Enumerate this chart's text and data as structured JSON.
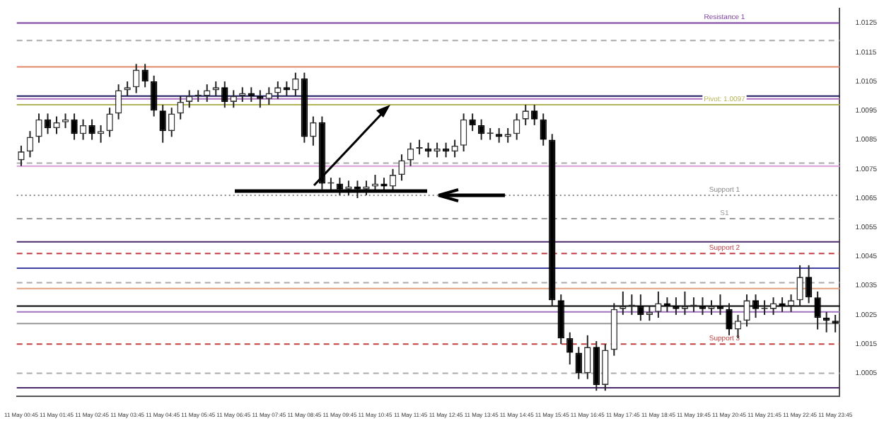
{
  "chart_data": {
    "type": "candlestick",
    "categories": [
      "11 May 00:45",
      null,
      null,
      null,
      "11 May 01:45",
      null,
      null,
      null,
      "11 May 02:45",
      null,
      null,
      null,
      "11 May 03:45",
      null,
      null,
      null,
      "11 May 04:45",
      null,
      null,
      null,
      "11 May 05:45",
      null,
      null,
      null,
      "11 May 06:45",
      null,
      null,
      null,
      "11 May 07:45",
      null,
      null,
      null,
      "11 May 08:45",
      null,
      null,
      null,
      "11 May 09:45",
      null,
      null,
      null,
      "11 May 10:45",
      null,
      null,
      null,
      "11 May 11:45",
      null,
      null,
      null,
      "11 May 12:45",
      null,
      null,
      null,
      "11 May 13:45",
      null,
      null,
      null,
      "11 May 14:45",
      null,
      null,
      null,
      "11 May 15:45",
      null,
      null,
      null,
      "11 May 16:45",
      null,
      null,
      null,
      "11 May 17:45",
      null,
      null,
      null,
      "11 May 18:45",
      null,
      null,
      null,
      "11 May 19:45",
      null,
      null,
      null,
      "11 May 20:45",
      null,
      null,
      null,
      "11 May 21:45",
      null,
      null,
      null,
      "11 May 22:45",
      null,
      null,
      null,
      "11 May 23:45"
    ],
    "ohlc": [
      [
        1.0078,
        1.0083,
        1.0076,
        1.0081
      ],
      [
        1.0081,
        1.0088,
        1.0079,
        1.0086
      ],
      [
        1.0086,
        1.0094,
        1.0084,
        1.0092
      ],
      [
        1.0092,
        1.0094,
        1.0087,
        1.0089
      ],
      [
        1.0089,
        1.0093,
        1.0087,
        1.0091
      ],
      [
        1.0091,
        1.0094,
        1.0089,
        1.0092
      ],
      [
        1.0092,
        1.0094,
        1.0085,
        1.0087
      ],
      [
        1.0087,
        1.0092,
        1.0085,
        1.009
      ],
      [
        1.009,
        1.0092,
        1.0085,
        1.0087
      ],
      [
        1.0087,
        1.009,
        1.0084,
        1.0088
      ],
      [
        1.0088,
        1.0096,
        1.0086,
        1.0094
      ],
      [
        1.0094,
        1.0104,
        1.0092,
        1.0102
      ],
      [
        1.0102,
        1.0105,
        1.01,
        1.0103
      ],
      [
        1.0103,
        1.0111,
        1.0101,
        1.0109
      ],
      [
        1.0109,
        1.0111,
        1.0103,
        1.0105
      ],
      [
        1.0105,
        1.0107,
        1.0093,
        1.0095
      ],
      [
        1.0095,
        1.0097,
        1.0084,
        1.0088
      ],
      [
        1.0088,
        1.0096,
        1.0086,
        1.0094
      ],
      [
        1.0094,
        1.01,
        1.0092,
        1.0098
      ],
      [
        1.0098,
        1.0102,
        1.0096,
        1.01
      ],
      [
        1.01,
        1.0102,
        1.0098,
        1.01
      ],
      [
        1.01,
        1.0104,
        1.0098,
        1.0102
      ],
      [
        1.0102,
        1.0105,
        1.01,
        1.0103
      ],
      [
        1.0103,
        1.0105,
        1.0096,
        1.0098
      ],
      [
        1.0098,
        1.0102,
        1.0096,
        1.01
      ],
      [
        1.01,
        1.0103,
        1.0098,
        1.0101
      ],
      [
        1.0101,
        1.0103,
        1.0098,
        1.01
      ],
      [
        1.01,
        1.0102,
        1.0096,
        1.0099
      ],
      [
        1.0099,
        1.0103,
        1.0097,
        1.0101
      ],
      [
        1.0101,
        1.0105,
        1.0099,
        1.0103
      ],
      [
        1.0103,
        1.0105,
        1.01,
        1.0102
      ],
      [
        1.0102,
        1.0108,
        1.01,
        1.0106
      ],
      [
        1.0106,
        1.0108,
        1.0084,
        1.0086
      ],
      [
        1.0086,
        1.0093,
        1.0083,
        1.0091
      ],
      [
        1.0091,
        1.0093,
        1.0068,
        1.007
      ],
      [
        1.007,
        1.0072,
        1.0067,
        1.007
      ],
      [
        1.007,
        1.0072,
        1.0066,
        1.0068
      ],
      [
        1.0068,
        1.0071,
        1.0066,
        1.0069
      ],
      [
        1.0069,
        1.0071,
        1.0065,
        1.0068
      ],
      [
        1.0068,
        1.0071,
        1.0066,
        1.0069
      ],
      [
        1.0069,
        1.0073,
        1.0067,
        1.007
      ],
      [
        1.007,
        1.0072,
        1.0067,
        1.0069
      ],
      [
        1.0069,
        1.0075,
        1.0067,
        1.0073
      ],
      [
        1.0073,
        1.008,
        1.0071,
        1.0078
      ],
      [
        1.0078,
        1.0084,
        1.0076,
        1.0082
      ],
      [
        1.0082,
        1.0085,
        1.008,
        1.0082
      ],
      [
        1.0082,
        1.0084,
        1.0079,
        1.0081
      ],
      [
        1.0081,
        1.0084,
        1.0079,
        1.0082
      ],
      [
        1.0082,
        1.0084,
        1.0079,
        1.0081
      ],
      [
        1.0081,
        1.0085,
        1.0079,
        1.0083
      ],
      [
        1.0083,
        1.0094,
        1.0081,
        1.0092
      ],
      [
        1.0092,
        1.0094,
        1.0088,
        1.009
      ],
      [
        1.009,
        1.0092,
        1.0085,
        1.0087
      ],
      [
        1.0087,
        1.0089,
        1.0085,
        1.0087
      ],
      [
        1.0087,
        1.0089,
        1.0084,
        1.0086
      ],
      [
        1.0086,
        1.0089,
        1.0084,
        1.0087
      ],
      [
        1.0087,
        1.0094,
        1.0085,
        1.0092
      ],
      [
        1.0092,
        1.0097,
        1.009,
        1.0095
      ],
      [
        1.0095,
        1.0097,
        1.009,
        1.0092
      ],
      [
        1.0092,
        1.0094,
        1.0083,
        1.0085
      ],
      [
        1.0085,
        1.0087,
        1.0028,
        1.003
      ],
      [
        1.003,
        1.0032,
        1.0015,
        1.0017
      ],
      [
        1.0017,
        1.0019,
        1.0008,
        1.0012
      ],
      [
        1.0012,
        1.0014,
        1.0003,
        1.0005
      ],
      [
        1.0005,
        1.0018,
        1.0003,
        1.0014
      ],
      [
        1.0014,
        1.0016,
        0.9999,
        1.0001
      ],
      [
        1.0001,
        1.0015,
        0.9999,
        1.0013
      ],
      [
        1.0013,
        1.0029,
        1.0011,
        1.0027
      ],
      [
        1.0027,
        1.0033,
        1.0025,
        1.0028
      ],
      [
        1.0028,
        1.0032,
        1.0025,
        1.0028
      ],
      [
        1.0028,
        1.0032,
        1.0023,
        1.0025
      ],
      [
        1.0025,
        1.0028,
        1.0023,
        1.0026
      ],
      [
        1.0026,
        1.0033,
        1.0024,
        1.0029
      ],
      [
        1.0029,
        1.0031,
        1.0026,
        1.0028
      ],
      [
        1.0028,
        1.0031,
        1.0025,
        1.0027
      ],
      [
        1.0027,
        1.0033,
        1.0025,
        1.0028
      ],
      [
        1.0028,
        1.0031,
        1.0026,
        1.0028
      ],
      [
        1.0028,
        1.0031,
        1.0025,
        1.0027
      ],
      [
        1.0027,
        1.003,
        1.0025,
        1.0028
      ],
      [
        1.0028,
        1.0032,
        1.0025,
        1.0027
      ],
      [
        1.0027,
        1.0029,
        1.0018,
        1.002
      ],
      [
        1.002,
        1.0025,
        1.0017,
        1.0023
      ],
      [
        1.0023,
        1.0032,
        1.0021,
        1.003
      ],
      [
        1.003,
        1.0032,
        1.0024,
        1.0027
      ],
      [
        1.0027,
        1.003,
        1.0025,
        1.0027
      ],
      [
        1.0027,
        1.0031,
        1.0025,
        1.0029
      ],
      [
        1.0029,
        1.0031,
        1.0026,
        1.0028
      ],
      [
        1.0028,
        1.0032,
        1.0026,
        1.003
      ],
      [
        1.003,
        1.0042,
        1.0028,
        1.0038
      ],
      [
        1.0038,
        1.0042,
        1.0029,
        1.0031
      ],
      [
        1.0031,
        1.0033,
        1.002,
        1.0024
      ],
      [
        1.0024,
        1.0026,
        1.0019,
        1.0023
      ],
      [
        1.0023,
        1.0025,
        1.0019,
        1.0022
      ]
    ],
    "ylim": [
      0.9997,
      1.013
    ],
    "yticks": [
      1.0005,
      1.0015,
      1.0025,
      1.0035,
      1.0045,
      1.0055,
      1.0065,
      1.0075,
      1.0085,
      1.0095,
      1.0105,
      1.0115,
      1.0125
    ],
    "ref_lines": [
      {
        "axis": "y",
        "value": 1.0125,
        "label": "Resistance 1",
        "color": "#7b3f9e",
        "line_style": "solid"
      },
      {
        "axis": "y",
        "value": 1.0119,
        "color": "#aaaaaa",
        "line_style": "dashed"
      },
      {
        "axis": "y",
        "value": 1.011,
        "color": "#e0866a",
        "line_style": "solid"
      },
      {
        "axis": "y",
        "value": 1.01,
        "color": "#1a1a5e",
        "line_style": "solid"
      },
      {
        "axis": "y",
        "value": 1.0099,
        "color": "#b070c0",
        "line_style": "solid"
      },
      {
        "axis": "y",
        "value": 1.0097,
        "label": "Pivot: 1.0097",
        "color": "#b5b55a",
        "line_style": "solid"
      },
      {
        "axis": "y",
        "value": 1.0077,
        "color": "#aaaaaa",
        "line_style": "dashed"
      },
      {
        "axis": "y",
        "value": 1.0076,
        "color": "#d8a0d8",
        "line_style": "solid"
      },
      {
        "axis": "y",
        "value": 1.0066,
        "label": "Support 1",
        "color": "#888888",
        "line_style": "dotted"
      },
      {
        "axis": "y",
        "value": 1.0058,
        "label": "S1",
        "color": "#999999",
        "line_style": "dashed"
      },
      {
        "axis": "y",
        "value": 1.005,
        "color": "#4b2a6b",
        "line_style": "solid"
      },
      {
        "axis": "y",
        "value": 1.0046,
        "label": "Support 2",
        "color": "#c0404a",
        "line_style": "dashed"
      },
      {
        "axis": "y",
        "value": 1.0041,
        "color": "#4040a0",
        "line_style": "solid"
      },
      {
        "axis": "y",
        "value": 1.0036,
        "color": "#aaaaaa",
        "line_style": "dashed"
      },
      {
        "axis": "y",
        "value": 1.0034,
        "color": "#e0a080",
        "line_style": "solid"
      },
      {
        "axis": "y",
        "value": 1.0028,
        "color": "#000000",
        "line_style": "solid"
      },
      {
        "axis": "y",
        "value": 1.0026,
        "color": "#a070c0",
        "line_style": "solid"
      },
      {
        "axis": "y",
        "value": 1.0022,
        "color": "#999999",
        "line_style": "solid"
      },
      {
        "axis": "y",
        "value": 1.0015,
        "label": "Support 3",
        "color": "#c04040",
        "line_style": "dashed"
      },
      {
        "axis": "y",
        "value": 1.0005,
        "color": "#aaaaaa",
        "line_style": "dashed"
      },
      {
        "axis": "y",
        "value": 1.0,
        "color": "#4b2a6b",
        "line_style": "solid"
      }
    ]
  }
}
